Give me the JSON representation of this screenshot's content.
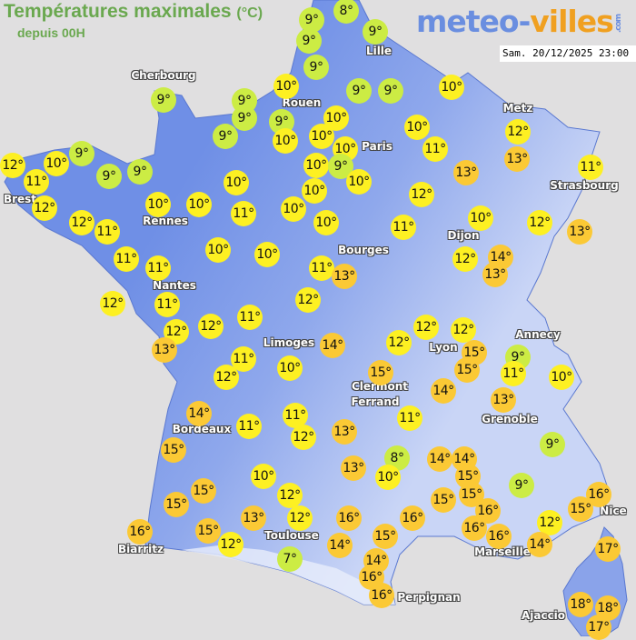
{
  "header": {
    "title": "Températures maximales",
    "unit": "(°C)",
    "subtitle": "depuis 00H",
    "timestamp": "Sam. 20/12/2025 23:00"
  },
  "logo": {
    "part1": "meteo-",
    "part2": "villes",
    "suffix": ".com"
  },
  "colors": {
    "cold": "#ccec44",
    "mild": "#fdf022",
    "warm": "#fbc935",
    "land": "#6f8fe6",
    "land_high": "#dfe6fb",
    "sea": "#e0dfe0"
  },
  "cities": [
    "Cherbourg",
    "Lille",
    "Rouen",
    "Paris",
    "Metz",
    "Strasbourg",
    "Brest",
    "Rennes",
    "Dijon",
    "Bourges",
    "Nantes",
    "Annecy",
    "Limoges",
    "Lyon",
    "Clermont",
    "Ferrand",
    "Grenoble",
    "Bordeaux",
    "Nice",
    "Marseille",
    "Biarritz",
    "Toulouse",
    "Perpignan",
    "Ajaccio"
  ],
  "markers": [
    "9°",
    "8°",
    "9°",
    "9°",
    "9°",
    "10°",
    "9°",
    "9°",
    "9°",
    "9°",
    "9°",
    "10°",
    "10°",
    "10°",
    "9°",
    "9°",
    "10°",
    "10°",
    "10°",
    "10°",
    "9°",
    "10°",
    "11°",
    "13°",
    "12°",
    "13°",
    "11°",
    "9°",
    "12°",
    "11°",
    "10°",
    "9°",
    "9°",
    "10°",
    "10°",
    "10°",
    "10°",
    "10°",
    "11°",
    "12°",
    "12°",
    "11°",
    "12°",
    "10°",
    "12°",
    "13°",
    "10°",
    "11°",
    "11°",
    "10°",
    "10°",
    "11°",
    "11°",
    "13°",
    "12°",
    "14°",
    "13°",
    "12°",
    "11°",
    "12°",
    "11°",
    "12°",
    "12°",
    "13°",
    "12°",
    "12°",
    "12°",
    "14°",
    "15°",
    "15°",
    "9°",
    "11°",
    "10°",
    "11°",
    "12°",
    "10°",
    "15°",
    "14°",
    "13°",
    "14°",
    "11°",
    "11°",
    "12°",
    "13°",
    "11°",
    "15°",
    "8°",
    "10°",
    "14°",
    "14°",
    "15°",
    "9°",
    "13°",
    "10°",
    "9°",
    "15°",
    "15°",
    "12°",
    "15°",
    "15°",
    "16°",
    "15°",
    "16°",
    "16°",
    "16°",
    "16°",
    "15°",
    "13°",
    "12°",
    "16°",
    "16°",
    "12°",
    "12°",
    "14°",
    "15°",
    "14°",
    "17°",
    "7°",
    "14°",
    "16°",
    "16°",
    "18°",
    "18°",
    "17°"
  ]
}
